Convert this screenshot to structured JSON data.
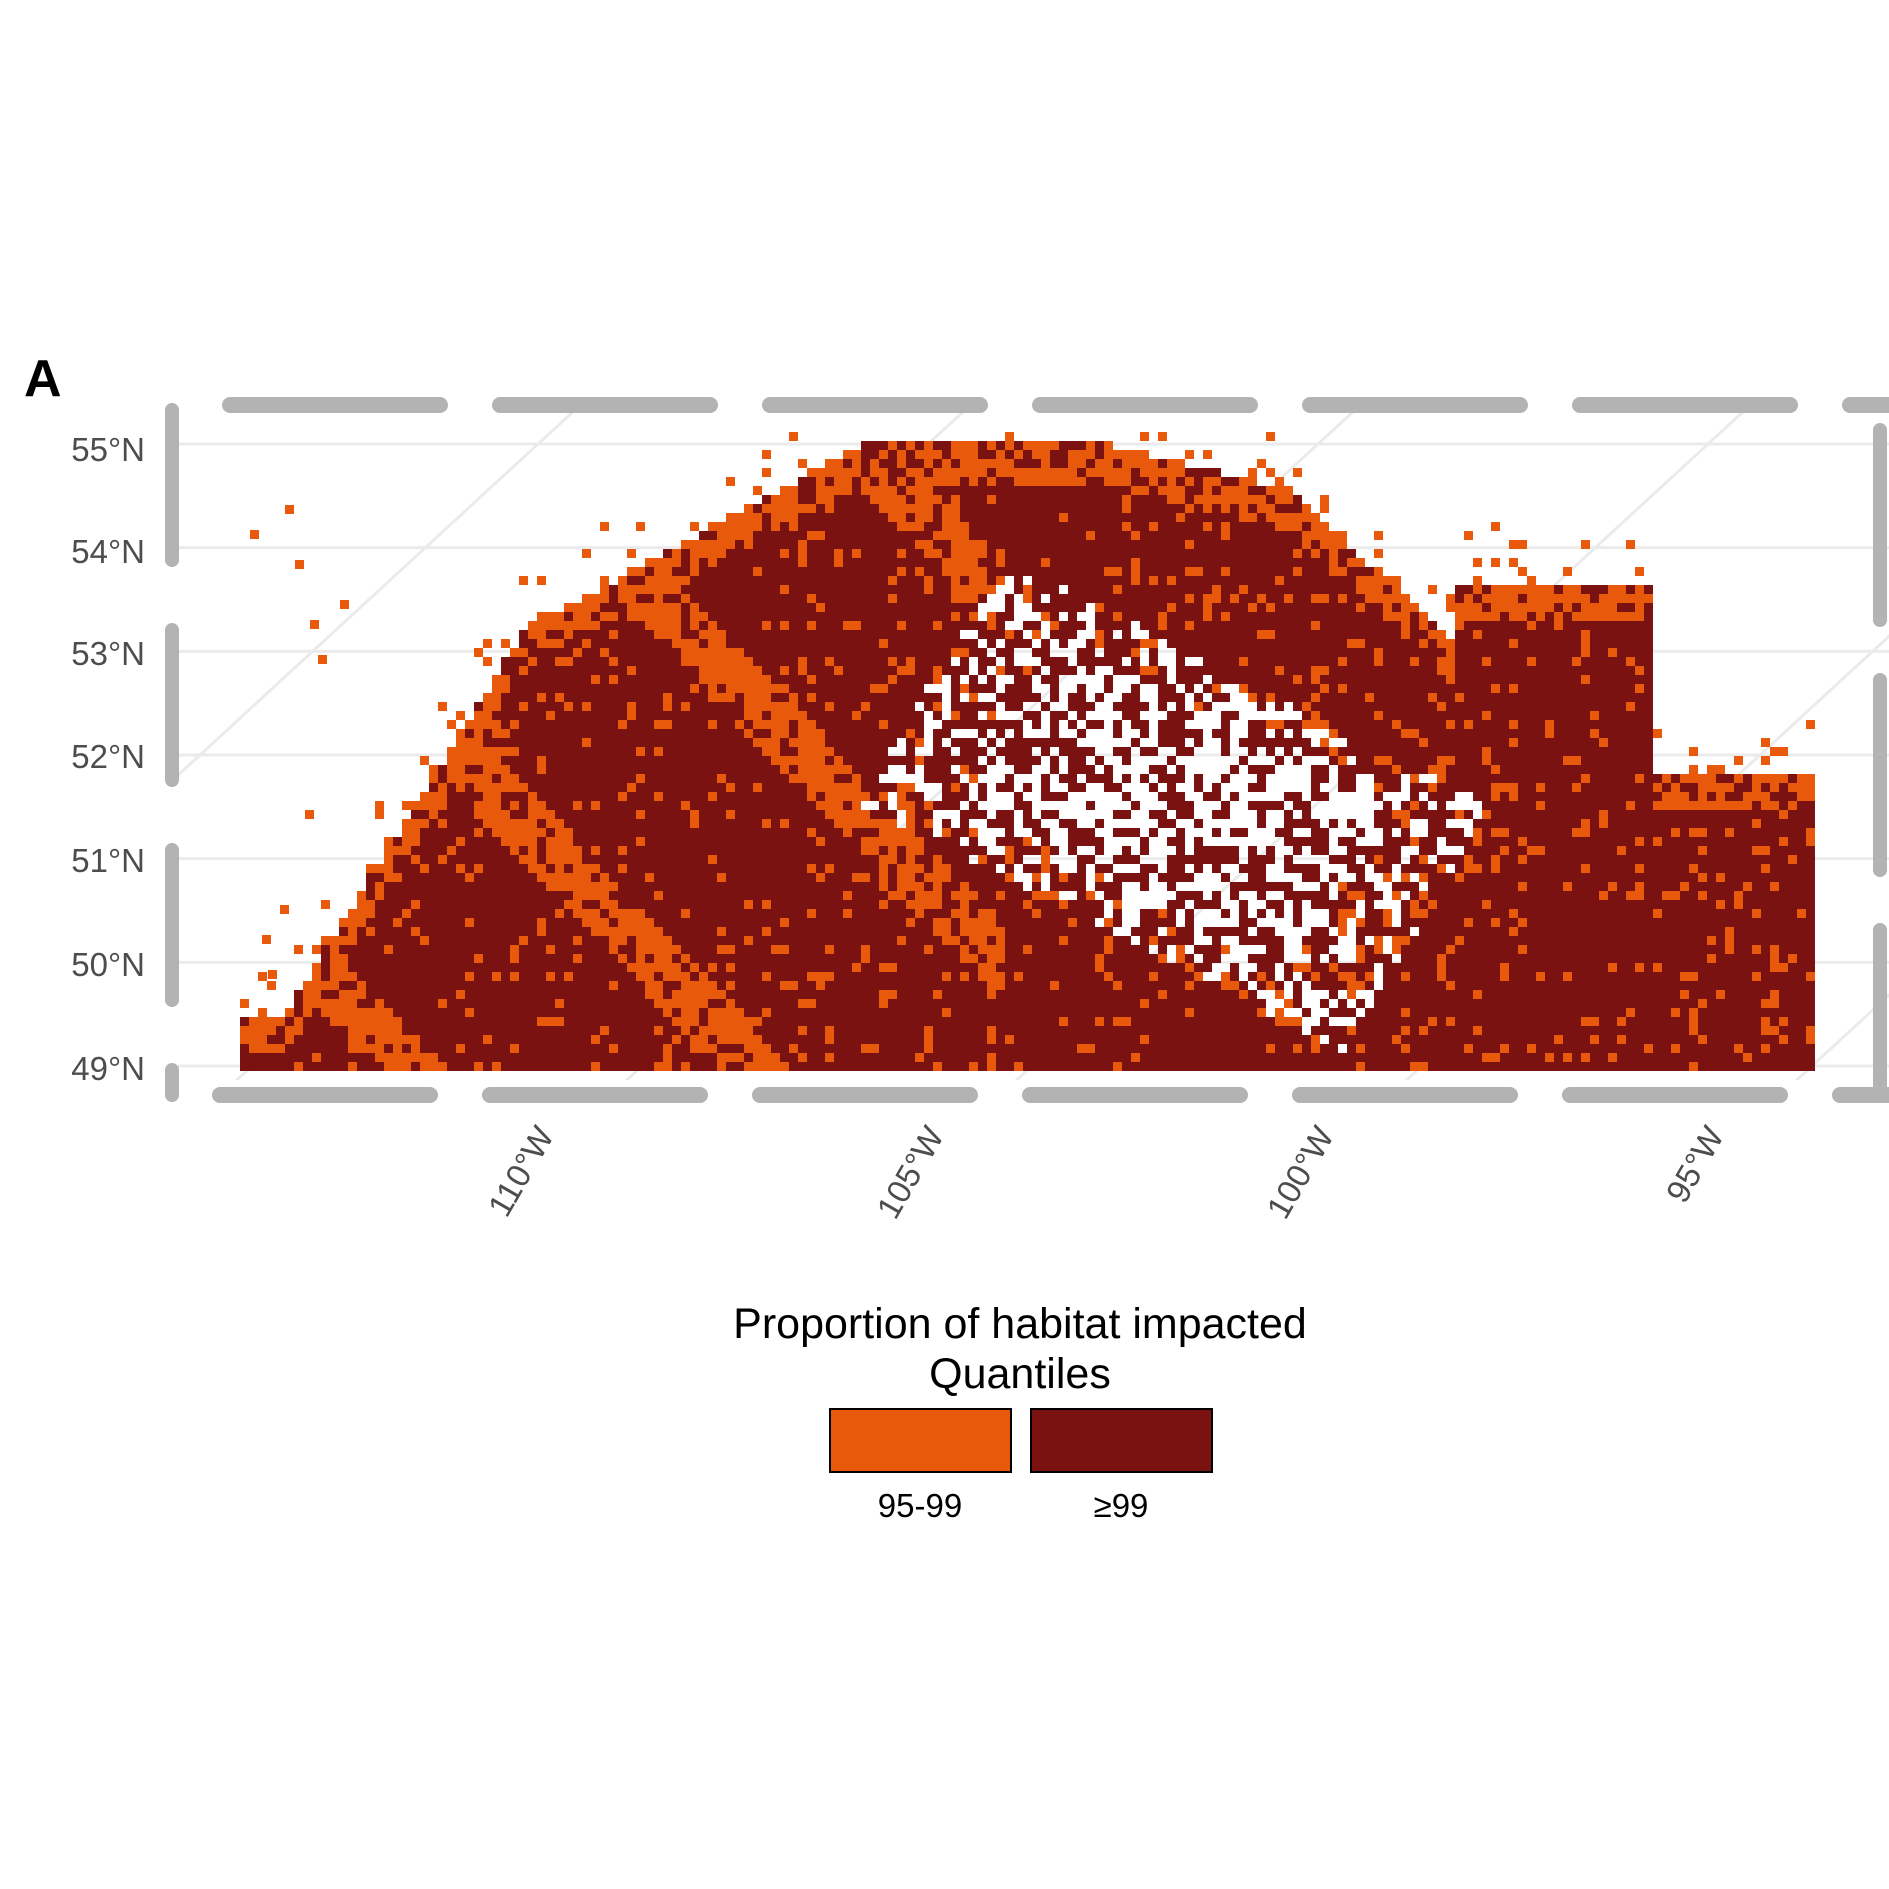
{
  "panel_label": "A",
  "map": {
    "y_axis_ticks": [
      "55°N",
      "54°N",
      "53°N",
      "52°N",
      "51°N",
      "50°N",
      "49°N"
    ],
    "x_axis_ticks": [
      "110°W",
      "105°W",
      "100°W",
      "95°W"
    ],
    "lat_range": [
      49,
      55.2
    ],
    "lon_range": [
      -113,
      -92
    ],
    "grid": true,
    "projection": "oblique (meridians tilted)",
    "region_extent": {
      "lat_min": 49,
      "lat_max": 55.2,
      "lon_min": -112,
      "lon_max": -92
    }
  },
  "legend": {
    "title_line1": "Proportion of habitat impacted",
    "title_line2": "Quantiles",
    "position": "bottom",
    "items": [
      {
        "label": "95-99",
        "color": "#E8590C"
      },
      {
        "label": "≥99",
        "color": "#7A1212"
      }
    ]
  },
  "colors": {
    "frame": "#B3B3B3",
    "grid": "#EBEBEB",
    "q95": "#E8590C",
    "q99": "#7A1212"
  }
}
